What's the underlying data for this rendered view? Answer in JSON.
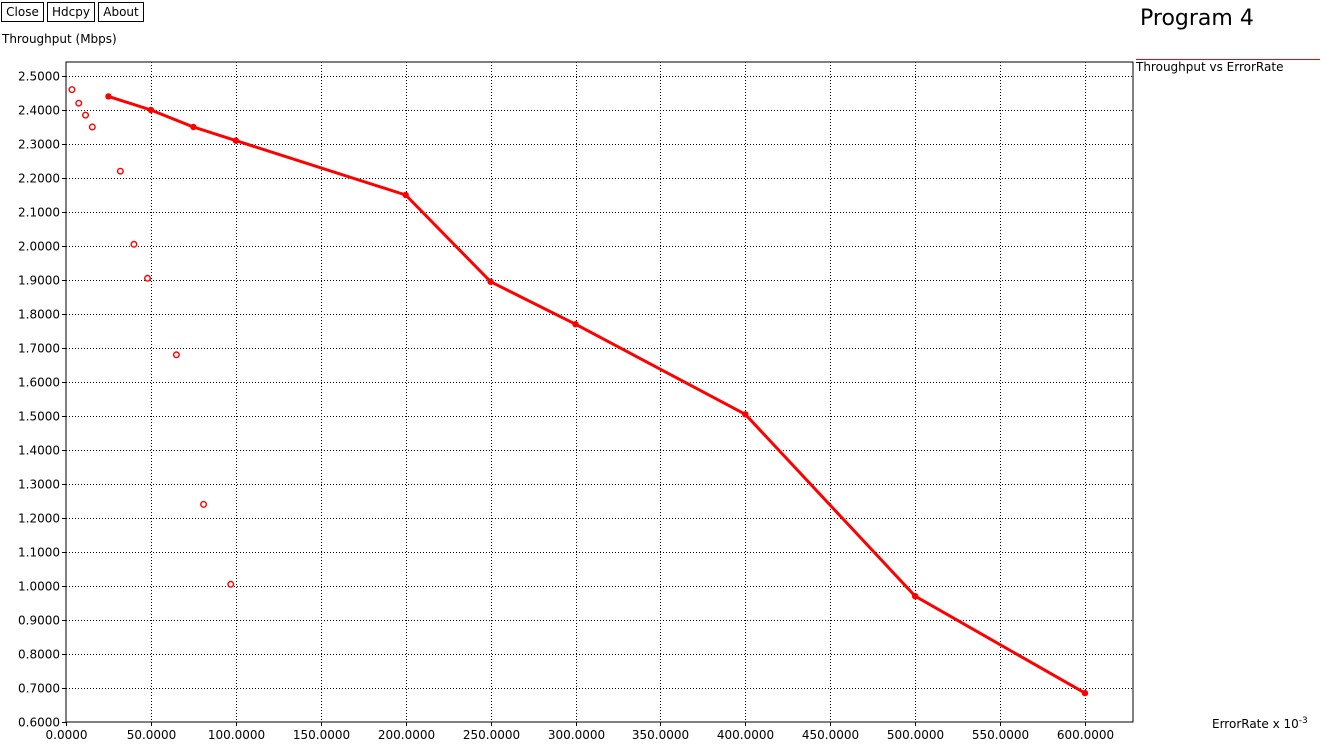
{
  "toolbar": {
    "close_label": "Close",
    "hdcpy_label": "Hdcpy",
    "about_label": "About"
  },
  "chart_data": {
    "type": "line",
    "title": "Program 4",
    "ylabel": "Throughput (Mbps)",
    "xlabel": "ErrorRate x 10",
    "xlabel_exponent": "-3",
    "legend": [
      "Throughput vs ErrorRate"
    ],
    "legend_position": "top-right",
    "grid": true,
    "xlim": [
      0,
      625
    ],
    "ylim": [
      0.6,
      2.52
    ],
    "x_ticks": [
      "0.0000",
      "50.0000",
      "100.0000",
      "150.0000",
      "200.0000",
      "250.0000",
      "300.0000",
      "350.0000",
      "400.0000",
      "450.0000",
      "500.0000",
      "550.0000",
      "600.0000"
    ],
    "y_ticks": [
      "0.6000",
      "0.7000",
      "0.8000",
      "0.9000",
      "1.0000",
      "1.1000",
      "1.2000",
      "1.3000",
      "1.4000",
      "1.5000",
      "1.6000",
      "1.7000",
      "1.8000",
      "1.9000",
      "2.0000",
      "2.1000",
      "2.2000",
      "2.3000",
      "2.4000",
      "2.5000"
    ],
    "series": [
      {
        "name": "Throughput vs ErrorRate",
        "color": "#ff0000",
        "x": [
          25,
          50,
          75,
          100,
          200,
          250,
          300,
          400,
          500,
          600
        ],
        "y": [
          2.44,
          2.4,
          2.35,
          2.31,
          2.15,
          1.895,
          1.77,
          1.505,
          0.97,
          0.685
        ]
      }
    ],
    "scatter_points": {
      "color": "#ff0000",
      "x": [
        3.5,
        7.5,
        11.5,
        15.5,
        32,
        40,
        48,
        65,
        81,
        97
      ],
      "y": [
        2.46,
        2.42,
        2.385,
        2.35,
        2.22,
        2.005,
        1.905,
        1.68,
        1.24,
        1.005
      ]
    }
  }
}
